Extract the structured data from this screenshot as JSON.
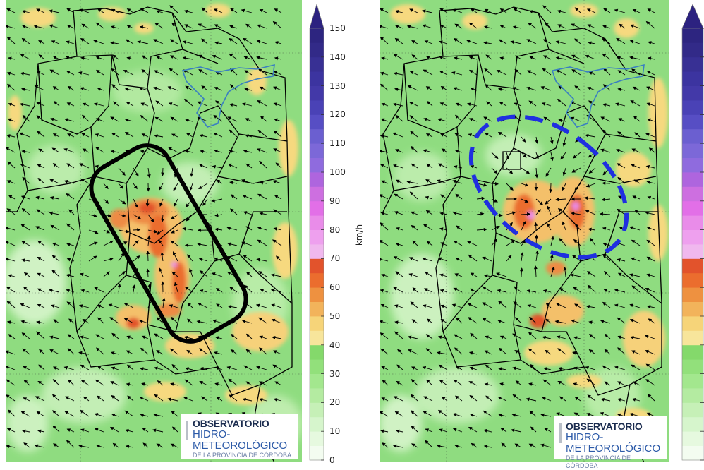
{
  "colorbar": {
    "unit": "km/h",
    "ticks": [
      "0",
      "10",
      "20",
      "30",
      "40",
      "50",
      "60",
      "70",
      "80",
      "90",
      "100",
      "110",
      "120",
      "130",
      "140",
      "150"
    ],
    "bin_size": 5,
    "colors": [
      "#f3fcf0",
      "#e6f9df",
      "#d6f5cc",
      "#c6f0b7",
      "#b4eba1",
      "#a3e78e",
      "#92e07b",
      "#84d96b",
      "#f7e59b",
      "#f6d479",
      "#f2b35b",
      "#ee9140",
      "#eb6d2e",
      "#e2532c",
      "#f0b8ee",
      "#eea0ee",
      "#e98ce9",
      "#e26fe7",
      "#cd6fe0",
      "#ae65de",
      "#8f6bde",
      "#7c68d8",
      "#6b5fd0",
      "#574ec4",
      "#4a42b6",
      "#4339a8",
      "#3c34a0",
      "#383094",
      "#322a88",
      "#2d2580"
    ],
    "extend_color": "#2c2280"
  },
  "left_map": {
    "annotation": {
      "shape": "rounded-rectangle",
      "color": "#000000",
      "style": "solid"
    },
    "logo": {
      "line1": "OBSERVATORIO",
      "line2": "HIDRO-METEOROLÓGICO",
      "line3": "DE LA PROVINCIA DE CÓRDOBA"
    }
  },
  "right_map": {
    "annotation": {
      "shape": "ellipse",
      "color": "#1f2fe0",
      "style": "dashed"
    },
    "logo": {
      "line1": "OBSERVATORIO",
      "line2": "HIDRO-METEOROLÓGICO",
      "line3": "DE LA PROVINCIA DE CÓRDOBA"
    }
  },
  "colors": {
    "background": "#8edb7e",
    "boundary": "#000000",
    "lake": "#3a7fc1"
  }
}
